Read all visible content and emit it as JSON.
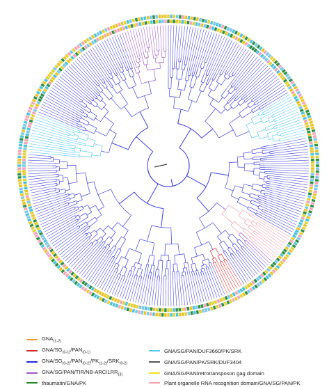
{
  "colors": {
    "branch": "#3b3fd6",
    "ring_palette": [
      "#e9c42a",
      "#4fc3d9",
      "#2f8f46",
      "#e2d13a",
      "#f0a6b8",
      "#7cc8e6"
    ]
  },
  "legend": [
    {
      "label": "GNA",
      "sub": "(1-2)",
      "color": "#f0963c"
    },
    {
      "label": "GNA/SG(0-1)/PAN(0-1)",
      "color": "#d42a2a"
    },
    {
      "label": "GNA/SG(0-2)/PAN(0-2)/PK(1-2)/SRK(0-2)",
      "color": "#1d2ad8"
    },
    {
      "label": "GNA/SG/PAN/TIR/NB-ARC/LRR(3)",
      "color": "#9b59c8"
    },
    {
      "label": "thaumatin/GNA/PK",
      "color": "#1e8a25"
    },
    {
      "label": "GNA/SG/PAN/DUF3660/PK/SRK",
      "color": "#58c8f0"
    },
    {
      "label": "GNA/SG/PAN/PK/SRK/DUF3404",
      "color": "#555555"
    },
    {
      "label": "GNA/SG/PAN/retrotransposon gag domain",
      "color": "#f2e01e"
    },
    {
      "label": "Plant organelle RNA recognition domain/GNA/SG/PAN/PK",
      "color": "#f2a0ac"
    }
  ]
}
